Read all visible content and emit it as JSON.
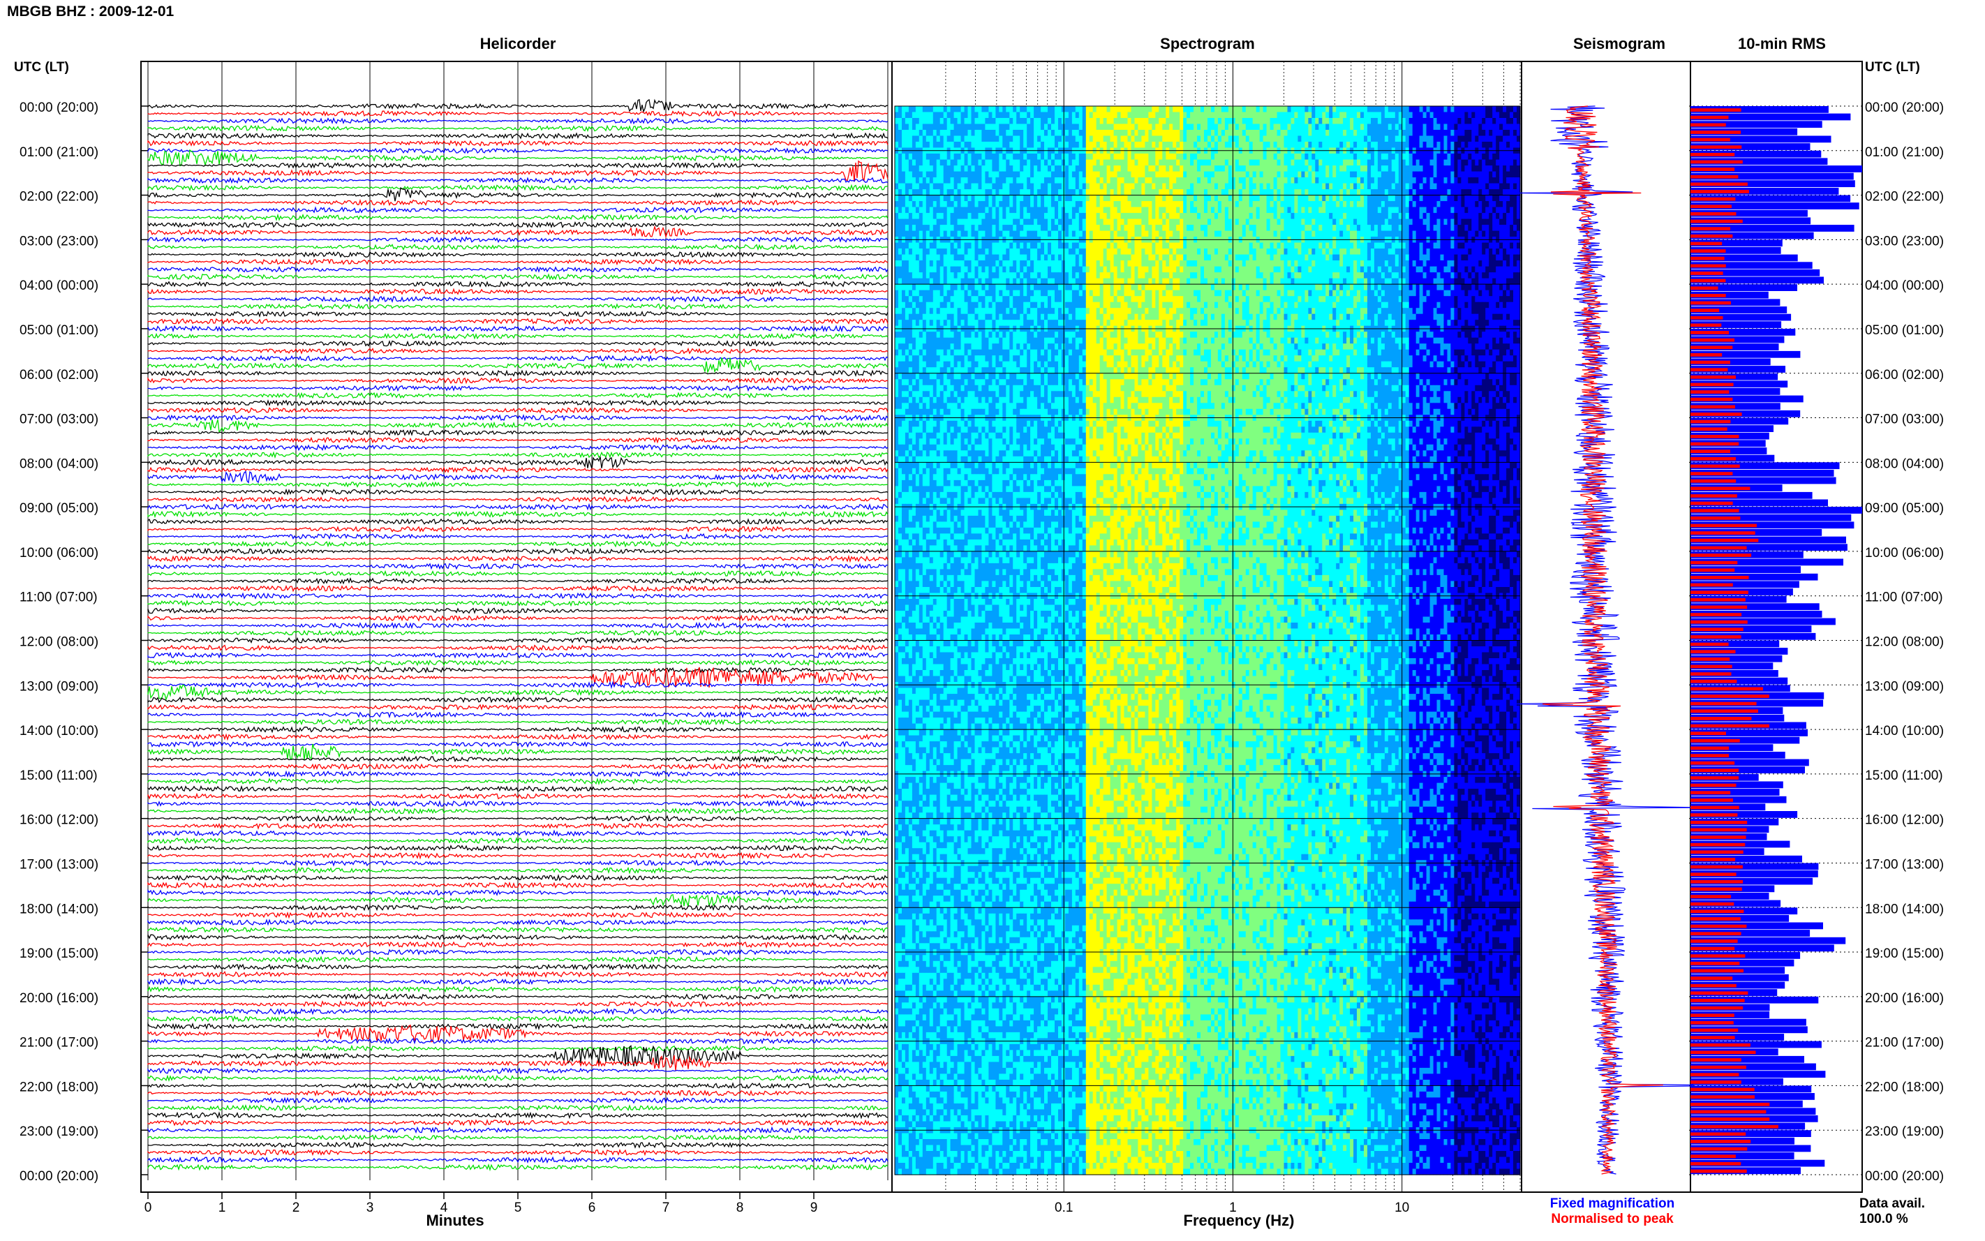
{
  "header": {
    "station_title": "MBGB BHZ : 2009-12-01",
    "time_axis_label": "UTC (LT)"
  },
  "panels": {
    "helicorder": "Helicorder",
    "spectrogram": "Spectrogram",
    "seismogram": "Seismogram",
    "rms": "10-min RMS"
  },
  "time_labels": [
    "00:00 (20:00)",
    "01:00 (21:00)",
    "02:00 (22:00)",
    "03:00 (23:00)",
    "04:00 (00:00)",
    "05:00 (01:00)",
    "06:00 (02:00)",
    "07:00 (03:00)",
    "08:00 (04:00)",
    "09:00 (05:00)",
    "10:00 (06:00)",
    "11:00 (07:00)",
    "12:00 (08:00)",
    "13:00 (09:00)",
    "14:00 (10:00)",
    "15:00 (11:00)",
    "16:00 (12:00)",
    "17:00 (13:00)",
    "18:00 (14:00)",
    "19:00 (15:00)",
    "20:00 (16:00)",
    "21:00 (17:00)",
    "22:00 (18:00)",
    "23:00 (19:00)",
    "00:00 (20:00)"
  ],
  "legend": {
    "fixed": "Fixed magnification",
    "normalised": "Normalised to peak",
    "data_avail_label": "Data avail.",
    "data_avail_value": "100.0 %"
  },
  "colors": {
    "trace_colors": [
      "#000000",
      "#ff0000",
      "#0000ff",
      "#00e000"
    ],
    "fixed": "#0000ff",
    "normalised": "#ff0000"
  },
  "chart_data": [
    {
      "type": "line",
      "name": "helicorder",
      "title": "Helicorder",
      "xlabel": "Minutes",
      "x_ticks": [
        "0",
        "1",
        "2",
        "3",
        "4",
        "5",
        "6",
        "7",
        "8",
        "9"
      ],
      "xlim": [
        0,
        10
      ],
      "rows_per_hour": 6,
      "hours": 24,
      "events": [
        {
          "hour": 0,
          "row": 0,
          "minute": 6.5,
          "duration": 0.6,
          "amp": 2.5
        },
        {
          "hour": 1,
          "row": 1,
          "minute": 0.0,
          "duration": 1.5,
          "amp": 3.0
        },
        {
          "hour": 1,
          "row": 3,
          "minute": 9.4,
          "duration": 0.6,
          "amp": 4.0
        },
        {
          "hour": 2,
          "row": 0,
          "minute": 3.2,
          "duration": 0.5,
          "amp": 2.0
        },
        {
          "hour": 2,
          "row": 5,
          "minute": 6.4,
          "duration": 1.0,
          "amp": 1.8
        },
        {
          "hour": 5,
          "row": 5,
          "minute": 7.5,
          "duration": 0.8,
          "amp": 3.0
        },
        {
          "hour": 7,
          "row": 1,
          "minute": 0.7,
          "duration": 0.8,
          "amp": 2.0
        },
        {
          "hour": 8,
          "row": 0,
          "minute": 5.8,
          "duration": 0.7,
          "amp": 2.0
        },
        {
          "hour": 8,
          "row": 2,
          "minute": 1.0,
          "duration": 0.8,
          "amp": 2.2
        },
        {
          "hour": 12,
          "row": 5,
          "minute": 6.0,
          "duration": 3.8,
          "amp": 3.0
        },
        {
          "hour": 13,
          "row": 1,
          "minute": 0.0,
          "duration": 0.8,
          "amp": 2.5
        },
        {
          "hour": 14,
          "row": 3,
          "minute": 1.8,
          "duration": 0.8,
          "amp": 3.5
        },
        {
          "hour": 17,
          "row": 5,
          "minute": 6.8,
          "duration": 1.2,
          "amp": 1.8
        },
        {
          "hour": 20,
          "row": 5,
          "minute": 2.3,
          "duration": 2.8,
          "amp": 2.5
        },
        {
          "hour": 21,
          "row": 2,
          "minute": 5.5,
          "duration": 2.5,
          "amp": 3.0
        },
        {
          "hour": 21,
          "row": 3,
          "minute": 6.8,
          "duration": 0.8,
          "amp": 2.5
        }
      ]
    },
    {
      "type": "heatmap",
      "name": "spectrogram",
      "title": "Spectrogram",
      "xlabel": "Frequency (Hz)",
      "x_scale": "log",
      "xlim": [
        0.01,
        50
      ],
      "x_ticks": [
        "0.1",
        "1",
        "10"
      ],
      "x_tick_values": [
        0.1,
        1,
        10
      ],
      "colormap": [
        "#00007f",
        "#0000ff",
        "#00a0ff",
        "#00ffff",
        "#80ff80",
        "#ffff00"
      ]
    },
    {
      "type": "area",
      "name": "seismogram",
      "title": "Seismogram",
      "series": [
        {
          "name": "Fixed magnification",
          "color": "#0000ff"
        },
        {
          "name": "Normalised to peak",
          "color": "#ff0000"
        }
      ]
    },
    {
      "type": "bar",
      "name": "10-min RMS",
      "title": "10-min RMS",
      "orientation": "horizontal",
      "series": [
        {
          "name": "Fixed magnification",
          "color": "#0000ff",
          "values": [
            0.75,
            0.95,
            0.8,
            0.65,
            0.6,
            0.55,
            0.55,
            0.5,
            0.7,
            0.85,
            0.75,
            0.7,
            0.55,
            0.65,
            0.6,
            0.5,
            0.55,
            0.6,
            0.75,
            0.55,
            0.6,
            0.65,
            0.8,
            0.65
          ]
        },
        {
          "name": "Normalised to peak",
          "color": "#ff0000",
          "values": [
            0.25,
            0.3,
            0.28,
            0.22,
            0.2,
            0.22,
            0.25,
            0.24,
            0.3,
            0.35,
            0.3,
            0.28,
            0.24,
            0.4,
            0.25,
            0.25,
            0.3,
            0.28,
            0.3,
            0.28,
            0.3,
            0.32,
            0.45,
            0.3
          ]
        }
      ]
    }
  ]
}
